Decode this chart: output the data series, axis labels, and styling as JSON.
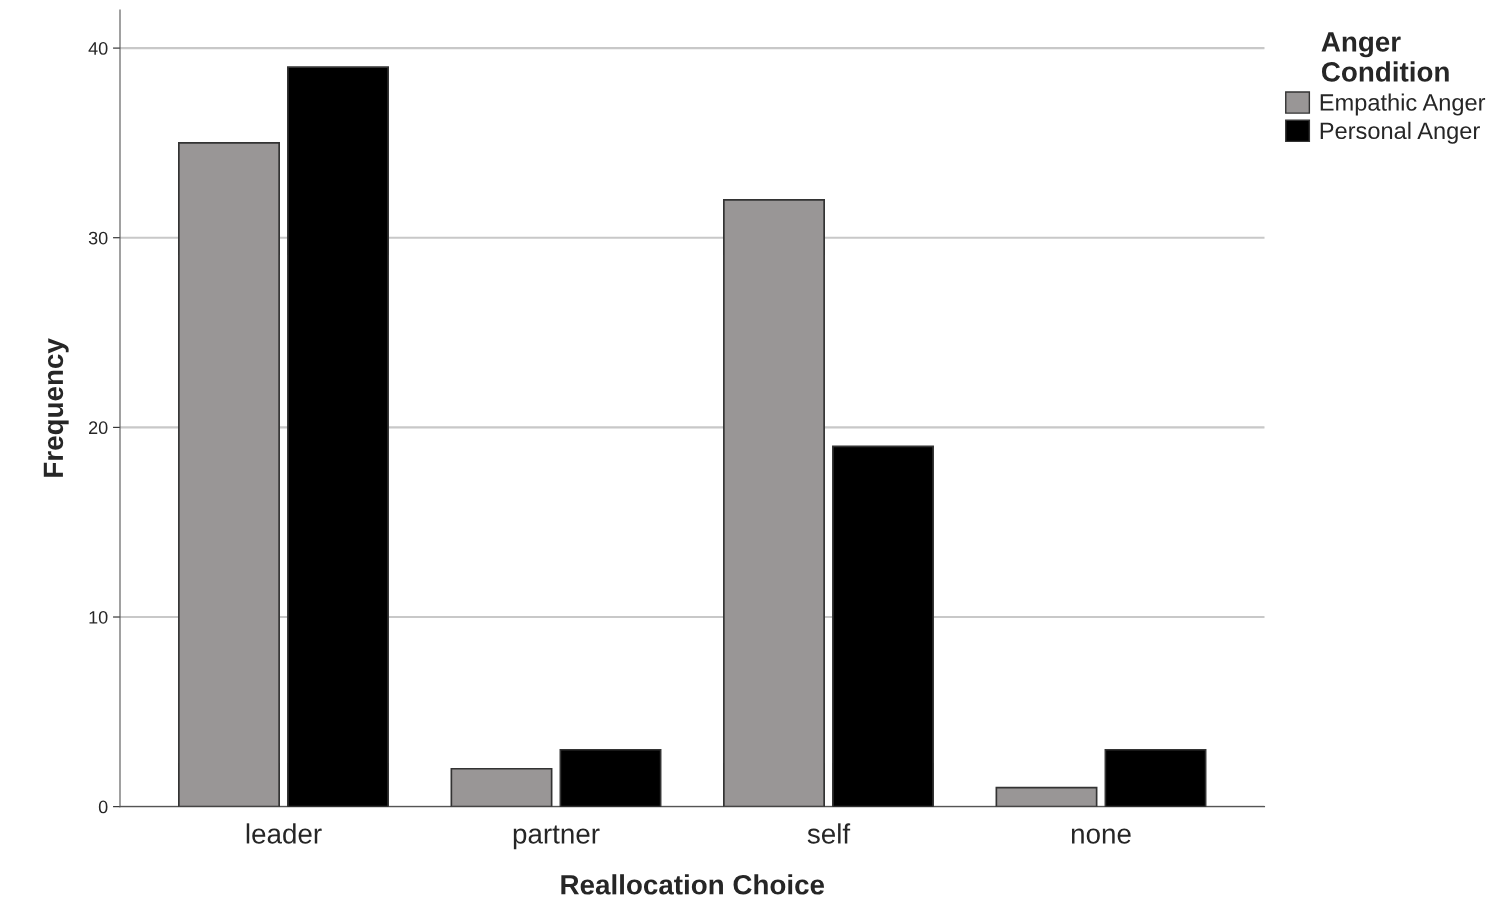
{
  "chart_data": {
    "type": "bar",
    "xlabel": "Reallocation Choice",
    "ylabel": "Frequency",
    "legend_title": "Anger\nCondition",
    "categories": [
      "leader",
      "partner",
      "self",
      "none"
    ],
    "series": [
      {
        "name": "Empathic Anger",
        "color": "#999696",
        "values": [
          35,
          2,
          32,
          1
        ]
      },
      {
        "name": "Personal Anger",
        "color": "#000000",
        "values": [
          39,
          3,
          19,
          3
        ]
      }
    ],
    "ylim": [
      0,
      42
    ],
    "yticks": [
      0,
      10,
      20,
      30,
      40
    ],
    "grid": "y",
    "legend": "top right"
  }
}
